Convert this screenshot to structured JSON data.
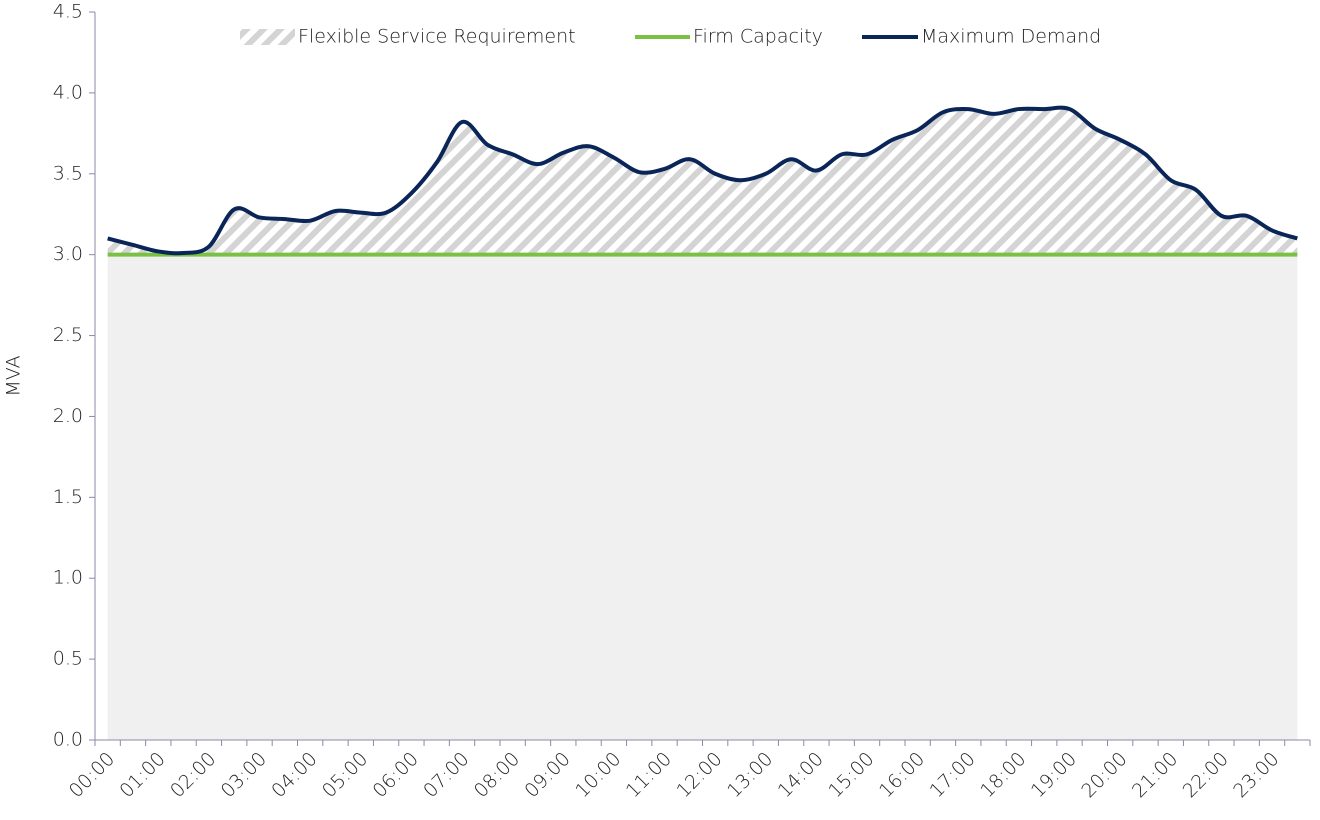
{
  "chart_data": {
    "type": "line",
    "y_label": "MVA",
    "area_name": "Flexible Service Requirement",
    "categories": [
      "00:00",
      null,
      "01:00",
      null,
      "02:00",
      null,
      "03:00",
      null,
      "04:00",
      null,
      "05:00",
      null,
      "06:00",
      null,
      "07:00",
      null,
      "08:00",
      null,
      "09:00",
      null,
      "10:00",
      null,
      "11:00",
      null,
      "12:00",
      null,
      "13:00",
      null,
      "14:00",
      null,
      "15:00",
      null,
      "16:00",
      null,
      "17:00",
      null,
      "18:00",
      null,
      "19:00",
      null,
      "20:00",
      null,
      "21:00",
      null,
      "22:00",
      null,
      "23:00",
      null
    ],
    "series": [
      {
        "name": "Firm Capacity",
        "color": "#7ac143",
        "values": [
          3.0,
          3.0,
          3.0,
          3.0,
          3.0,
          3.0,
          3.0,
          3.0,
          3.0,
          3.0,
          3.0,
          3.0,
          3.0,
          3.0,
          3.0,
          3.0,
          3.0,
          3.0,
          3.0,
          3.0,
          3.0,
          3.0,
          3.0,
          3.0,
          3.0,
          3.0,
          3.0,
          3.0,
          3.0,
          3.0,
          3.0,
          3.0,
          3.0,
          3.0,
          3.0,
          3.0,
          3.0,
          3.0,
          3.0,
          3.0,
          3.0,
          3.0,
          3.0,
          3.0,
          3.0,
          3.0,
          3.0,
          3.0
        ]
      },
      {
        "name": "Maximum Demand",
        "color": "#0a2557",
        "values": [
          3.1,
          3.06,
          3.02,
          3.01,
          3.05,
          3.28,
          3.23,
          3.22,
          3.21,
          3.27,
          3.26,
          3.26,
          3.38,
          3.57,
          3.82,
          3.68,
          3.62,
          3.56,
          3.63,
          3.67,
          3.6,
          3.51,
          3.53,
          3.59,
          3.5,
          3.46,
          3.5,
          3.59,
          3.52,
          3.62,
          3.62,
          3.71,
          3.77,
          3.88,
          3.9,
          3.87,
          3.9,
          3.9,
          3.9,
          3.78,
          3.71,
          3.62,
          3.46,
          3.4,
          3.24,
          3.24,
          3.15,
          3.1
        ]
      }
    ],
    "ylim": [
      0,
      4.5
    ],
    "yticks": [
      {
        "value": 0,
        "label": "0.0"
      },
      0.5,
      {
        "value": 1,
        "label": "1.0"
      },
      1.5,
      {
        "value": 2,
        "label": "2.0"
      },
      2.5,
      {
        "value": 3,
        "label": "3.0"
      },
      3.5,
      {
        "value": 4,
        "label": "4.0"
      },
      4.5
    ],
    "grid": false
  }
}
